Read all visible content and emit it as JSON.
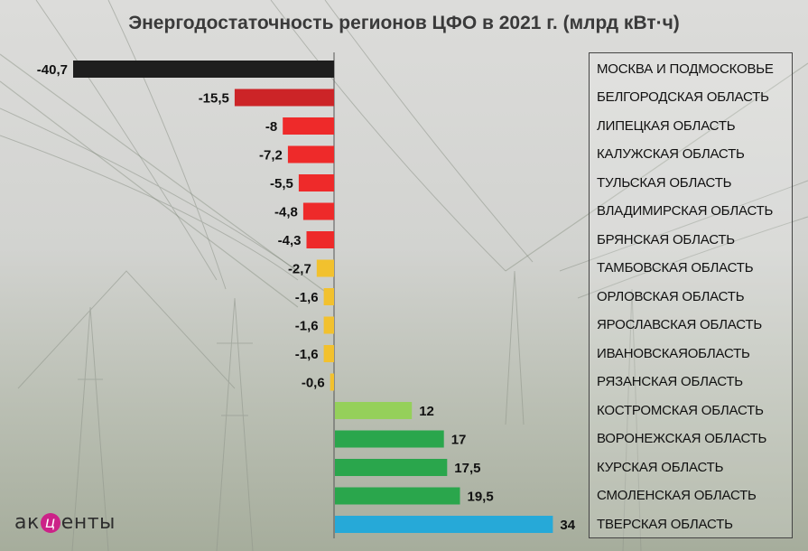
{
  "title": "Энергодостаточность регионов ЦФО в 2021 г. (млрд кВт·ч)",
  "logo": {
    "pre": "ак",
    "mid": "ц",
    "post": "енты"
  },
  "colors": {
    "moscow": "#1e1e1e",
    "belgorod": "#cc2427",
    "red": "#ee2a2a",
    "yellow": "#f2c12e",
    "lightgreen": "#95d05a",
    "green": "#2aa64c",
    "blue": "#26a9d8"
  },
  "chart_data": {
    "type": "bar",
    "orientation": "horizontal",
    "title": "Энергодостаточность регионов ЦФО в 2021 г. (млрд кВт·ч)",
    "categories": [
      "МОСКВА И ПОДМОСКОВЬЕ",
      "БЕЛГОРОДСКАЯ ОБЛАСТЬ",
      "ЛИПЕЦКАЯ ОБЛАСТЬ",
      "КАЛУЖСКАЯ ОБЛАСТЬ",
      "ТУЛЬСКАЯ ОБЛАСТЬ",
      "ВЛАДИМИРСКАЯ ОБЛАСТЬ",
      "БРЯНСКАЯ ОБЛАСТЬ",
      "ТАМБОВСКАЯ ОБЛАСТЬ",
      "ОРЛОВСКАЯ ОБЛАСТЬ",
      "ЯРОСЛАВСКАЯ ОБЛАСТЬ",
      "ИВАНОВСКАЯОБЛАСТЬ",
      "РЯЗАНСКАЯ ОБЛАСТЬ",
      "КОСТРОМСКАЯ ОБЛАСТЬ",
      "ВОРОНЕЖСКАЯ ОБЛАСТЬ",
      "КУРСКАЯ ОБЛАСТЬ",
      "СМОЛЕНСКАЯ ОБЛАСТЬ",
      "ТВЕРСКАЯ ОБЛАСТЬ"
    ],
    "values": [
      -40.7,
      -15.5,
      -8,
      -7.2,
      -5.5,
      -4.8,
      -4.3,
      -2.7,
      -1.6,
      -1.6,
      -1.6,
      -0.6,
      12,
      17,
      17.5,
      19.5,
      34
    ],
    "value_labels": [
      "-40,7",
      "-15,5",
      "-8",
      "-7,2",
      "-5,5",
      "-4,8",
      "-4,3",
      "-2,7",
      "-1,6",
      "-1,6",
      "-1,6",
      "-0,6",
      "12",
      "17",
      "17,5",
      "19,5",
      "34"
    ],
    "bar_colors": [
      "moscow",
      "belgorod",
      "red",
      "red",
      "red",
      "red",
      "red",
      "yellow",
      "yellow",
      "yellow",
      "yellow",
      "yellow",
      "lightgreen",
      "green",
      "green",
      "green",
      "blue"
    ],
    "xlim": [
      -40.7,
      34
    ],
    "legend": "right"
  }
}
